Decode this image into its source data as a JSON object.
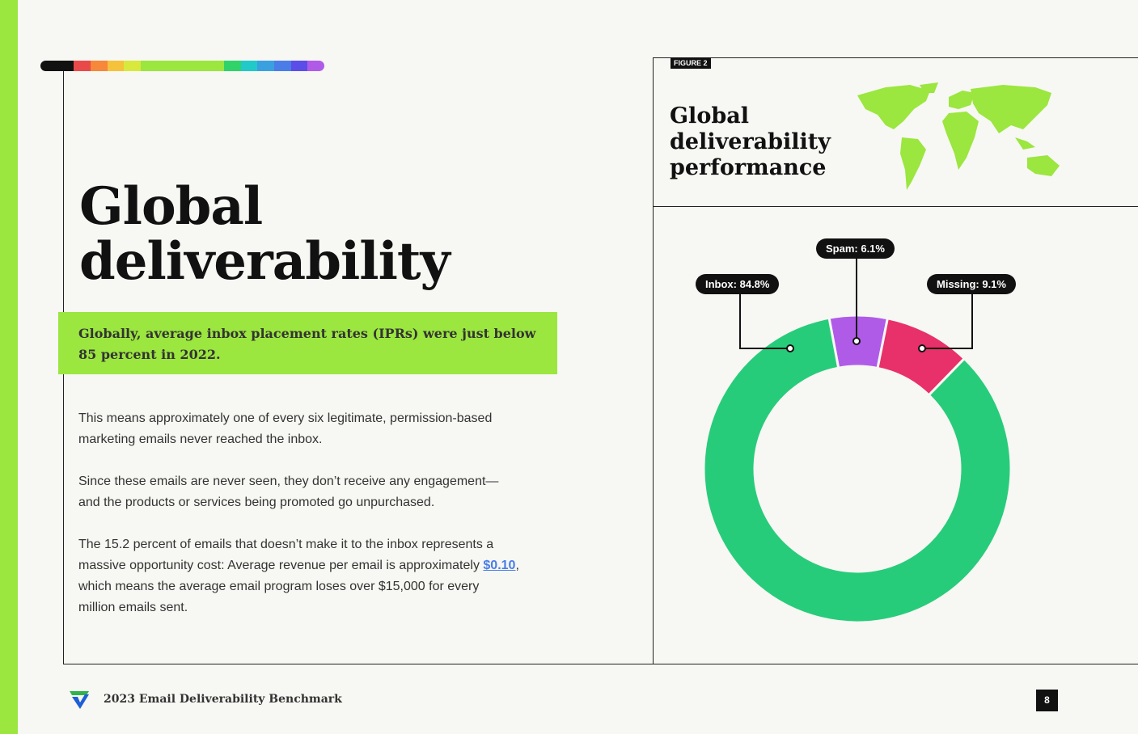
{
  "title_line1": "Global",
  "title_line2": "deliverability",
  "callout": "Globally, average inbox placement rates (IPRs) were just below 85 percent in 2022.",
  "paragraphs": [
    "This means approximately one of every six legitimate, permission-based marketing emails never reached the inbox.",
    "Since these emails are never seen, they don’t receive any engagement—and the products or services being promoted go unpurchased."
  ],
  "para3_before": "The 15.2 percent of emails that doesn’t make it to the inbox represents a massive opportunity cost: Average revenue per email is approximately ",
  "para3_link": "$0.10",
  "para3_after": ", which means the average email program loses over $15,000 for every million emails sent.",
  "figure_tag": "FIGURE 2",
  "figure_title": "Global deliverability performance",
  "footer": "2023 Email Deliverability Benchmark",
  "page_number": "8",
  "rainbow_colors": [
    "#111111",
    "#111111",
    "#e84a4a",
    "#f7873a",
    "#f5c23c",
    "#d8e83c",
    "#9be63f",
    "#9be63f",
    "#9be63f",
    "#9be63f",
    "#9be63f",
    "#2fd36a",
    "#22c9c9",
    "#3aa0e0",
    "#4a7de8",
    "#5b4ee8",
    "#b05be8"
  ],
  "chart_data": {
    "type": "pie",
    "variant": "donut",
    "categories": [
      "Inbox",
      "Spam",
      "Missing"
    ],
    "values": [
      84.8,
      6.1,
      9.1
    ],
    "labels": [
      "Inbox: 84.8%",
      "Spam: 6.1%",
      "Missing: 9.1%"
    ],
    "colors": [
      "#27cc7a",
      "#b05be8",
      "#e8306a"
    ]
  }
}
